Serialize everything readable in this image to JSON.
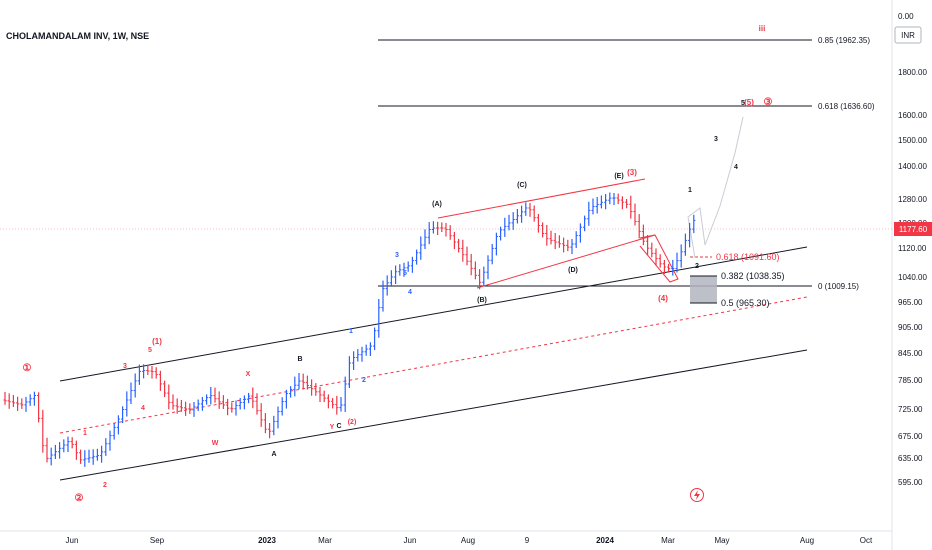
{
  "header": {
    "symbol_title": "CHOLAMANDALAM INV, 1W, NSE",
    "currency": "INR"
  },
  "chart_data": {
    "type": "candlestick",
    "price_scale": {
      "labels": [
        "0.00",
        "1800.00",
        "1600.00",
        "1500.00",
        "1400.00",
        "1280.00",
        "1200.00",
        "1120.00",
        "1040.00",
        "965.00",
        "905.00",
        "845.00",
        "785.00",
        "725.00",
        "675.00",
        "635.00",
        "595.00"
      ]
    },
    "last_price": "1177.60",
    "x_axis": {
      "labels": [
        "Jun",
        "Sep",
        "2023",
        "Mar",
        "Jun",
        "Aug",
        "9",
        "2024",
        "Mar",
        "May",
        "Aug",
        "Oct"
      ]
    },
    "fib_levels": [
      {
        "ratio": "0.85",
        "price": 1962.35,
        "label": "0.85 (1962.35)",
        "color": "#131722"
      },
      {
        "ratio": "0.618",
        "price": 1636.6,
        "label": "0.618 (1636.60)",
        "color": "#131722"
      },
      {
        "ratio": "0",
        "price": 1009.15,
        "label": "0 (1009.15)",
        "color": "#131722"
      },
      {
        "ratio": "0.618",
        "price": 1091.6,
        "label": "0.618 (1091.60)",
        "color": "#f23645"
      },
      {
        "ratio": "0.382",
        "price": 1038.35,
        "label": "0.382 (1038.35)",
        "color": "#131722"
      },
      {
        "ratio": "0.5",
        "price": 965.3,
        "label": "0.5 (965.30)",
        "color": "#131722"
      }
    ],
    "wave_labels": [
      {
        "text": "①",
        "color": "#f23645"
      },
      {
        "text": "②",
        "color": "#f23645"
      },
      {
        "text": "1",
        "color": "#f23645"
      },
      {
        "text": "2",
        "color": "#f23645"
      },
      {
        "text": "3",
        "color": "#f23645"
      },
      {
        "text": "4",
        "color": "#f23645"
      },
      {
        "text": "5",
        "color": "#f23645"
      },
      {
        "text": "(1)",
        "color": "#f23645"
      },
      {
        "text": "W",
        "color": "#f23645"
      },
      {
        "text": "X",
        "color": "#f23645"
      },
      {
        "text": "Y",
        "color": "#f23645"
      },
      {
        "text": "(2)",
        "color": "#f23645"
      },
      {
        "text": "A",
        "color": "#131722"
      },
      {
        "text": "B",
        "color": "#131722"
      },
      {
        "text": "C",
        "color": "#131722"
      },
      {
        "text": "1",
        "color": "#2962ff"
      },
      {
        "text": "2",
        "color": "#2962ff"
      },
      {
        "text": "3",
        "color": "#2962ff"
      },
      {
        "text": "4",
        "color": "#2962ff"
      },
      {
        "text": "5",
        "color": "#2962ff"
      },
      {
        "text": "(A)",
        "color": "#131722"
      },
      {
        "text": "(B)",
        "color": "#131722"
      },
      {
        "text": "(C)",
        "color": "#131722"
      },
      {
        "text": "(D)",
        "color": "#131722"
      },
      {
        "text": "(E)",
        "color": "#131722"
      },
      {
        "text": "(3)",
        "color": "#f23645"
      },
      {
        "text": "(4)",
        "color": "#f23645"
      },
      {
        "text": "1",
        "color": "#131722"
      },
      {
        "text": "2",
        "color": "#131722"
      },
      {
        "text": "3",
        "color": "#131722"
      },
      {
        "text": "4",
        "color": "#131722"
      },
      {
        "text": "5",
        "color": "#131722"
      },
      {
        "text": "(5)",
        "color": "#f23645"
      },
      {
        "text": "③",
        "color": "#f23645"
      },
      {
        "text": "iii",
        "color": "#f23645"
      }
    ],
    "up_color": "#2962ff",
    "down_color": "#f23645"
  }
}
